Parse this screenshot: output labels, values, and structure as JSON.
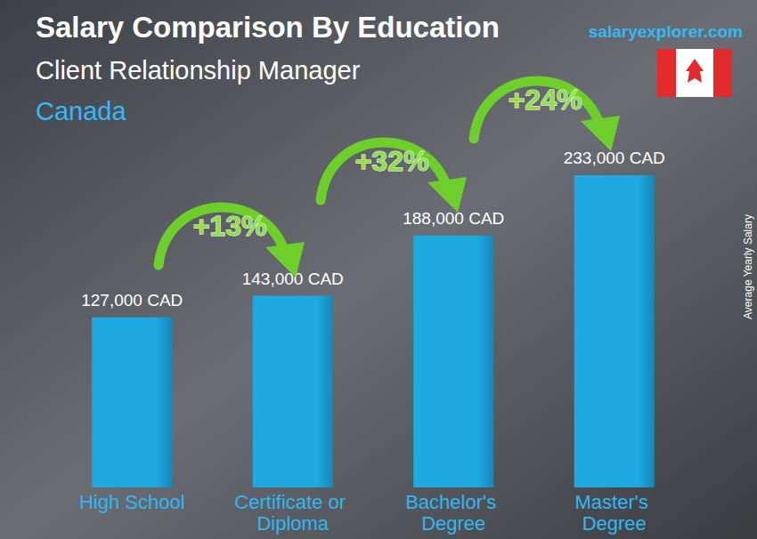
{
  "chart_data": {
    "type": "bar",
    "title": "Salary Comparison By Education",
    "subtitle": "Client Relationship Manager",
    "location": "Canada",
    "source": "salaryexplorer.com",
    "y_label": "Average Yearly Salary",
    "categories": [
      "High School",
      "Certificate or Diploma",
      "Bachelor's Degree",
      "Master's Degree"
    ],
    "values": [
      127000,
      143000,
      188000,
      233000
    ],
    "value_labels": [
      "127,000 CAD",
      "143,000 CAD",
      "188,000 CAD",
      "233,000 CAD"
    ],
    "annotations": [
      "+13%",
      "+32%",
      "+24%"
    ],
    "color": "#1ea9e1",
    "ylim": [
      0,
      233000
    ],
    "grid": false,
    "data_labels": true,
    "tick_labels": "x"
  }
}
